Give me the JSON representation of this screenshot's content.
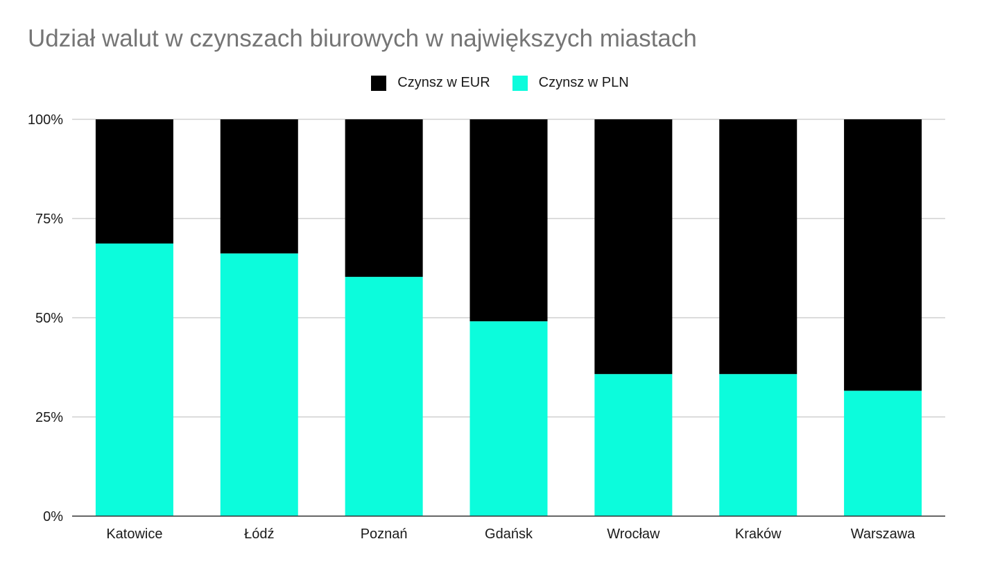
{
  "chart_data": {
    "type": "bar",
    "stacked": true,
    "title": "Udział walut w czynszach biurowych w największych miastach",
    "xlabel": "",
    "ylabel": "",
    "categories": [
      "Katowice",
      "Łódź",
      "Poznań",
      "Gdańsk",
      "Wrocław",
      "Kraków",
      "Warszawa"
    ],
    "series": [
      {
        "name": "Czynsz w PLN",
        "color": "#0cfcdc",
        "values": [
          0.687,
          0.662,
          0.603,
          0.491,
          0.358,
          0.358,
          0.316
        ]
      },
      {
        "name": "Czynsz w EUR",
        "color": "#000000",
        "values": [
          0.313,
          0.338,
          0.397,
          0.509,
          0.642,
          0.642,
          0.684
        ]
      }
    ],
    "legend_order": [
      "Czynsz w EUR",
      "Czynsz w PLN"
    ],
    "ylim": [
      0,
      1
    ],
    "yticks": [
      0,
      0.25,
      0.5,
      0.75,
      1
    ],
    "ytick_labels": [
      "0%",
      "25%",
      "50%",
      "75%",
      "100%"
    ],
    "grid": true,
    "legend_position": "top-center"
  }
}
